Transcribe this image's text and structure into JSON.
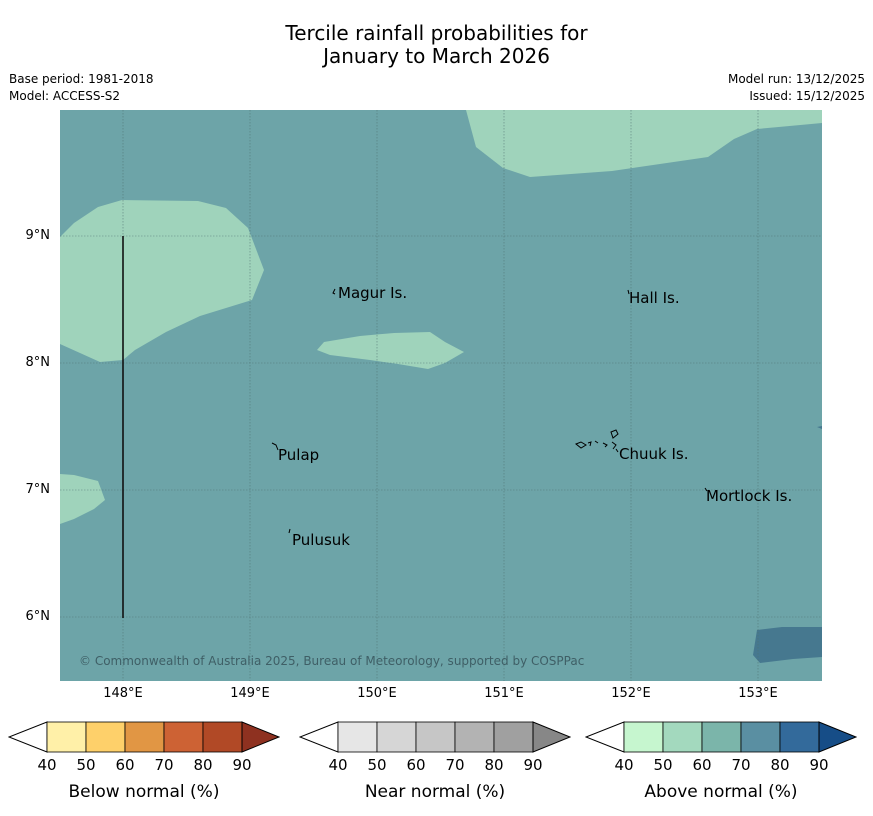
{
  "header": {
    "title_line1": "Tercile rainfall probabilities for",
    "title_line2": "January to March 2026",
    "base_period": "Base period: 1981-2018",
    "model": "Model: ACCESS-S2",
    "model_run": "Model run: 13/12/2025",
    "issued": "Issued: 15/12/2025"
  },
  "map": {
    "lat_labels": [
      "9°N",
      "8°N",
      "7°N",
      "6°N"
    ],
    "lon_labels": [
      "148°E",
      "149°E",
      "150°E",
      "151°E",
      "152°E",
      "153°E"
    ],
    "places": {
      "magur": "Magur Is.",
      "hall": "Hall Is.",
      "pulap": "Pulap",
      "chuuk": "Chuuk Is.",
      "mortlock": "Mortlock Is.",
      "pulusuk": "Pulusuk"
    },
    "copyright": "© Commonwealth of Australia 2025, Bureau of Meteorology, supported by COSPPac",
    "colors": {
      "above_60_70": "#6da4a8",
      "above_50_60": "#9fd3bb",
      "above_70_80": "#46788f"
    }
  },
  "legend": {
    "below": {
      "title": "Below normal (%)",
      "ticks": [
        "40",
        "50",
        "60",
        "70",
        "80",
        "90"
      ],
      "colors": [
        "#fff0a8",
        "#fed06a",
        "#e19644",
        "#cd6234",
        "#b14926",
        "#8e3120"
      ]
    },
    "near": {
      "title": "Near normal (%)",
      "ticks": [
        "40",
        "50",
        "60",
        "70",
        "80",
        "90"
      ],
      "colors": [
        "#e6e6e6",
        "#d6d6d6",
        "#c6c6c6",
        "#b3b3b3",
        "#a0a0a0",
        "#878787"
      ]
    },
    "above": {
      "title": "Above normal (%)",
      "ticks": [
        "40",
        "50",
        "60",
        "70",
        "80",
        "90"
      ],
      "colors": [
        "#c6f6cf",
        "#a3d9be",
        "#7bb5aa",
        "#5a8fa2",
        "#336a9b",
        "#164d87"
      ]
    }
  }
}
